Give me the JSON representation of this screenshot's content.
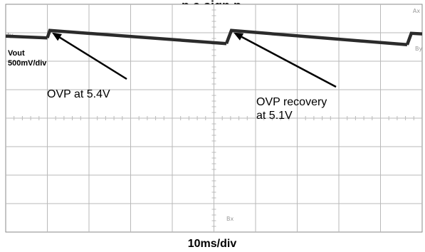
{
  "title_fragment": "p    a     sign   p",
  "cursors": {
    "ax": "Ax",
    "ay": "Ay",
    "by": "By",
    "bx": "Bx"
  },
  "colors": {
    "trace": "#2b2b2b",
    "grid": "#b9b9b9",
    "screen_border": "#8a8a8a",
    "arrow": "#000000"
  },
  "chart_data": {
    "type": "line",
    "title": "",
    "channel_label": "Vout",
    "ylabel": "500mV/div",
    "xlabel": "10ms/div",
    "grid": true,
    "divisions": {
      "x": 10,
      "y": 8
    },
    "ylim": [
      -0.4,
      3.6
    ],
    "xlim": [
      0,
      100
    ],
    "series": [
      {
        "name": "",
        "segments": [
          {
            "x": [
              0,
              10
            ],
            "y": [
              3.04,
              3.01
            ]
          },
          {
            "x": [
              10,
              10.6,
              53
            ],
            "y": [
              3.01,
              3.14,
              2.91
            ]
          },
          {
            "x": [
              53,
              54.2,
              96.4
            ],
            "y": [
              2.91,
              3.14,
              2.89
            ]
          },
          {
            "x": [
              96.4,
              97.4,
              100
            ],
            "y": [
              2.89,
              3.09,
              3.08
            ]
          }
        ]
      }
    ],
    "annotations": [
      {
        "lines": [
          "OVP at 5.4V"
        ],
        "x": 10.6,
        "y": 3.14
      },
      {
        "lines": [
          "OVP recovery",
          "at 5.1V"
        ],
        "x": 54.2,
        "y": 3.14
      }
    ]
  }
}
